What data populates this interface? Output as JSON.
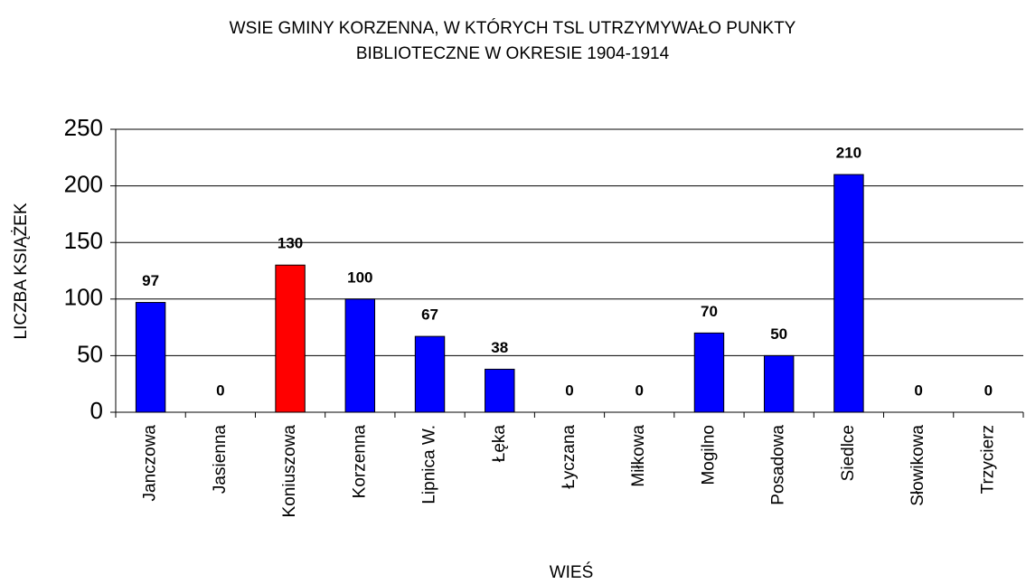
{
  "chart_data": {
    "type": "bar",
    "title": [
      "WSIE GMINY KORZENNA, W KTÓRYCH TSL UTRZYMYWAŁO PUNKTY",
      "BIBLIOTECZNE W OKRESIE  1904-1914"
    ],
    "x_label": "WIEŚ",
    "y_label": "LICZBA KSIĄŻEK",
    "categories": [
      "Janczowa",
      "Jasienna",
      "Koniuszowa",
      "Korzenna",
      "Lipnica W.",
      "Łęka",
      "Łyczana",
      "Miłkowa",
      "Mogilno",
      "Posadowa",
      "Siedlce",
      "Słowikowa",
      "Trzycierz"
    ],
    "values": [
      97,
      0,
      130,
      100,
      67,
      38,
      0,
      0,
      70,
      50,
      210,
      0,
      0
    ],
    "colors": [
      "#0000ff",
      "#0000ff",
      "#ff0000",
      "#0000ff",
      "#0000ff",
      "#0000ff",
      "#0000ff",
      "#0000ff",
      "#0000ff",
      "#0000ff",
      "#0000ff",
      "#0000ff",
      "#0000ff"
    ],
    "ylim": [
      0,
      250
    ],
    "yticks": [
      0,
      50,
      100,
      150,
      200,
      250
    ],
    "grid": true
  }
}
